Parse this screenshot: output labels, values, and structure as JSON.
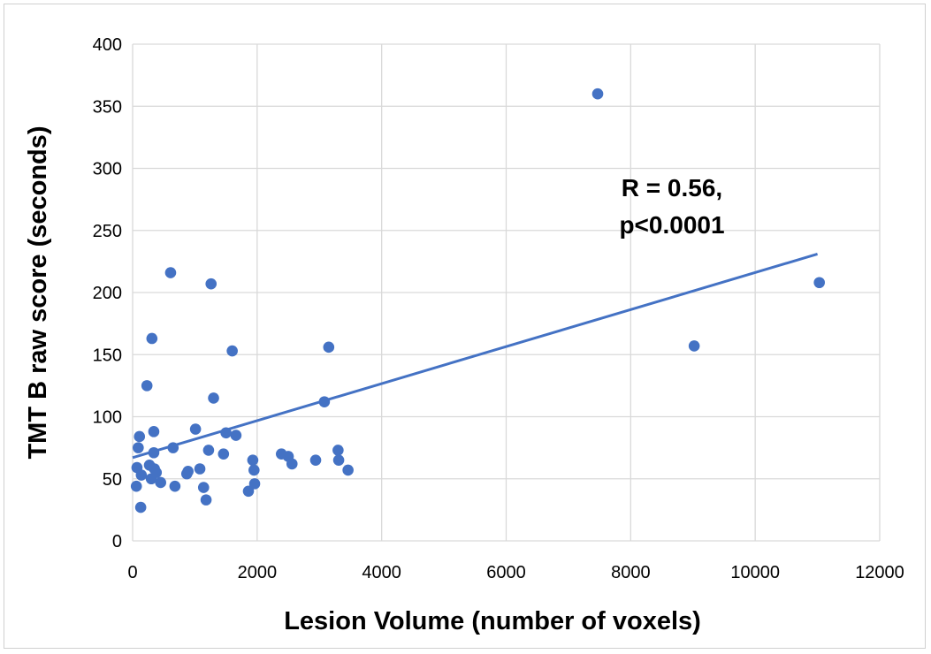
{
  "chart_data": {
    "type": "scatter",
    "title": "",
    "xlabel": "Lesion Volume (number of voxels)",
    "ylabel": "TMT B raw score (seconds)",
    "xlim": [
      0,
      12000
    ],
    "ylim": [
      0,
      400
    ],
    "xticks": [
      "0",
      "2000",
      "4000",
      "6000",
      "8000",
      "10000",
      "12000"
    ],
    "yticks": [
      "0",
      "50",
      "100",
      "150",
      "200",
      "250",
      "300",
      "350",
      "400"
    ],
    "grid": true,
    "annotation": [
      "R = 0.56,",
      "p<0.0001"
    ],
    "point_color": "#4472C4",
    "trendline": {
      "x": [
        0,
        11000
      ],
      "y": [
        67,
        231
      ]
    },
    "points": [
      [
        610,
        216
      ],
      [
        1260,
        207
      ],
      [
        310,
        163
      ],
      [
        1600,
        153
      ],
      [
        3150,
        156
      ],
      [
        230,
        125
      ],
      [
        1300,
        115
      ],
      [
        3080,
        112
      ],
      [
        7470,
        360
      ],
      [
        9020,
        157
      ],
      [
        11030,
        208
      ],
      [
        110,
        84
      ],
      [
        340,
        88
      ],
      [
        1010,
        90
      ],
      [
        1500,
        87
      ],
      [
        1660,
        85
      ],
      [
        90,
        75
      ],
      [
        650,
        75
      ],
      [
        340,
        71
      ],
      [
        1220,
        73
      ],
      [
        1460,
        70
      ],
      [
        1930,
        65
      ],
      [
        2390,
        70
      ],
      [
        2500,
        68
      ],
      [
        2560,
        62
      ],
      [
        2940,
        65
      ],
      [
        3300,
        73
      ],
      [
        3310,
        65
      ],
      [
        3460,
        57
      ],
      [
        1950,
        57
      ],
      [
        1960,
        46
      ],
      [
        1860,
        40
      ],
      [
        70,
        59
      ],
      [
        270,
        61
      ],
      [
        350,
        58
      ],
      [
        380,
        55
      ],
      [
        140,
        53
      ],
      [
        300,
        50
      ],
      [
        450,
        47
      ],
      [
        870,
        54
      ],
      [
        890,
        56
      ],
      [
        1080,
        58
      ],
      [
        680,
        44
      ],
      [
        60,
        44
      ],
      [
        1140,
        43
      ],
      [
        1180,
        33
      ],
      [
        130,
        27
      ]
    ]
  }
}
